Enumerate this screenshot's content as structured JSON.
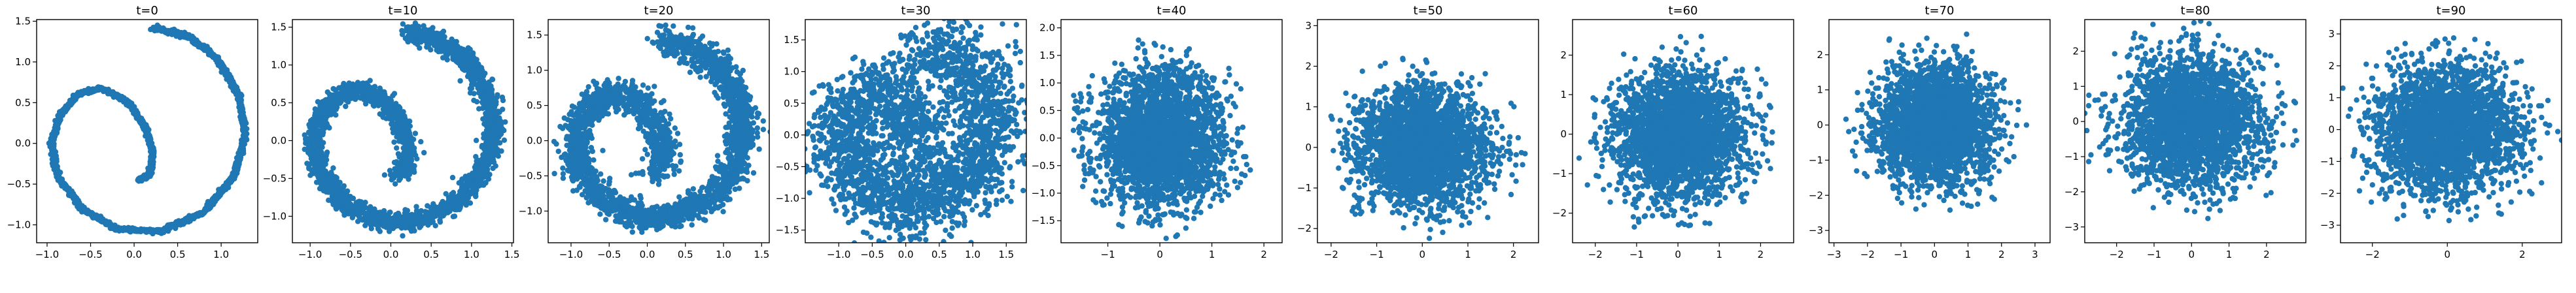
{
  "chart_data": [
    {
      "type": "scatter",
      "title": "t=0",
      "shape": "spiral",
      "noise": 0.012,
      "n": 2600,
      "color": "#1f77b4",
      "xlim": [
        -1.12,
        1.42
      ],
      "ylim": [
        -1.22,
        1.52
      ],
      "xticks": [
        "-1.0",
        "-0.5",
        "0.0",
        "0.5",
        "1.0"
      ],
      "xtick_values": [
        -1.0,
        -0.5,
        0.0,
        0.5,
        1.0
      ],
      "yticks": [
        "-1.0",
        "-0.5",
        "0.0",
        "0.5",
        "1.0",
        "1.5"
      ],
      "ytick_values": [
        -1.0,
        -0.5,
        0.0,
        0.5,
        1.0,
        1.5
      ]
    },
    {
      "type": "scatter",
      "title": "t=10",
      "shape": "spiral",
      "noise": 0.06,
      "n": 2600,
      "color": "#1f77b4",
      "xlim": [
        -1.22,
        1.52
      ],
      "ylim": [
        -1.35,
        1.6
      ],
      "xticks": [
        "-1.0",
        "-0.5",
        "0.0",
        "0.5",
        "1.0",
        "1.5"
      ],
      "xtick_values": [
        -1.0,
        -0.5,
        0.0,
        0.5,
        1.0,
        1.5
      ],
      "yticks": [
        "-1.0",
        "-0.5",
        "0.0",
        "0.5",
        "1.0",
        "1.5"
      ],
      "ytick_values": [
        -1.0,
        -0.5,
        0.0,
        0.5,
        1.0,
        1.5
      ]
    },
    {
      "type": "scatter",
      "title": "t=20",
      "shape": "spiral",
      "noise": 0.1,
      "n": 2600,
      "color": "#1f77b4",
      "xlim": [
        -1.3,
        1.6
      ],
      "ylim": [
        -1.45,
        1.72
      ],
      "xticks": [
        "-1.0",
        "-0.5",
        "0.0",
        "0.5",
        "1.0",
        "1.5"
      ],
      "xtick_values": [
        -1.0,
        -0.5,
        0.0,
        0.5,
        1.0,
        1.5
      ],
      "yticks": [
        "-1.0",
        "-0.5",
        "0.0",
        "0.5",
        "1.0",
        "1.5"
      ],
      "ytick_values": [
        -1.0,
        -0.5,
        0.0,
        0.5,
        1.0,
        1.5
      ]
    },
    {
      "type": "scatter",
      "title": "t=30",
      "shape": "spiral",
      "noise": 0.28,
      "n": 2600,
      "color": "#1f77b4",
      "xlim": [
        -1.5,
        1.8
      ],
      "ylim": [
        -1.7,
        1.82
      ],
      "xticks": [
        "-1.0",
        "-0.5",
        "0.0",
        "0.5",
        "1.0",
        "1.5"
      ],
      "xtick_values": [
        -1.0,
        -0.5,
        0.0,
        0.5,
        1.0,
        1.5
      ],
      "yticks": [
        "-1.5",
        "-1.0",
        "-0.5",
        "0.0",
        "0.5",
        "1.0",
        "1.5"
      ],
      "ytick_values": [
        -1.5,
        -1.0,
        -0.5,
        0.0,
        0.5,
        1.0,
        1.5
      ]
    },
    {
      "type": "scatter",
      "title": "t=40",
      "shape": "blob",
      "sigma": 0.62,
      "rmax": 1.85,
      "n": 2600,
      "color": "#1f77b4",
      "xlim": [
        -1.9,
        2.35
      ],
      "ylim": [
        -1.9,
        2.15
      ],
      "xticks": [
        "-1",
        "0",
        "1",
        "2"
      ],
      "xtick_values": [
        -1,
        0,
        1,
        2
      ],
      "yticks": [
        "-1.5",
        "-1.0",
        "-0.5",
        "0.0",
        "0.5",
        "1.0",
        "1.5",
        "2.0"
      ],
      "ytick_values": [
        -1.5,
        -1.0,
        -0.5,
        0.0,
        0.5,
        1.0,
        1.5,
        2.0
      ]
    },
    {
      "type": "scatter",
      "title": "t=50",
      "shape": "blob",
      "sigma": 0.72,
      "rmax": 2.3,
      "n": 2600,
      "color": "#1f77b4",
      "xlim": [
        -2.3,
        2.55
      ],
      "ylim": [
        -2.35,
        3.15
      ],
      "xticks": [
        "-2",
        "-1",
        "0",
        "1",
        "2"
      ],
      "xtick_values": [
        -2,
        -1,
        0,
        1,
        2
      ],
      "yticks": [
        "-2",
        "-1",
        "0",
        "1",
        "2",
        "3"
      ],
      "ytick_values": [
        -2,
        -1,
        0,
        1,
        2,
        3
      ]
    },
    {
      "type": "scatter",
      "title": "t=60",
      "shape": "blob",
      "sigma": 0.8,
      "rmax": 2.6,
      "n": 2600,
      "color": "#1f77b4",
      "xlim": [
        -2.55,
        2.8
      ],
      "ylim": [
        -2.75,
        2.9
      ],
      "xticks": [
        "-2",
        "-1",
        "0",
        "1",
        "2"
      ],
      "xtick_values": [
        -2,
        -1,
        0,
        1,
        2
      ],
      "yticks": [
        "-2",
        "-1",
        "0",
        "1",
        "2"
      ],
      "ytick_values": [
        -2,
        -1,
        0,
        1,
        2
      ]
    },
    {
      "type": "scatter",
      "title": "t=70",
      "shape": "blob",
      "sigma": 0.85,
      "rmax": 2.8,
      "n": 2600,
      "color": "#1f77b4",
      "xlim": [
        -3.15,
        3.45
      ],
      "ylim": [
        -3.35,
        3.0
      ],
      "xticks": [
        "-3",
        "-2",
        "-1",
        "0",
        "1",
        "2",
        "3"
      ],
      "xtick_values": [
        -3,
        -2,
        -1,
        0,
        1,
        2,
        3
      ],
      "yticks": [
        "-3",
        "-2",
        "-1",
        "0",
        "1",
        "2"
      ],
      "ytick_values": [
        -3,
        -2,
        -1,
        0,
        1,
        2
      ]
    },
    {
      "type": "scatter",
      "title": "t=80",
      "shape": "blob",
      "sigma": 0.92,
      "rmax": 3.0,
      "n": 2600,
      "color": "#1f77b4",
      "xlim": [
        -2.85,
        3.05
      ],
      "ylim": [
        -3.45,
        2.9
      ],
      "xticks": [
        "-2",
        "-1",
        "0",
        "1",
        "2"
      ],
      "xtick_values": [
        -2,
        -1,
        0,
        1,
        2
      ],
      "yticks": [
        "-3",
        "-2",
        "-1",
        "0",
        "1",
        "2"
      ],
      "ytick_values": [
        -3,
        -2,
        -1,
        0,
        1,
        2
      ]
    },
    {
      "type": "scatter",
      "title": "t=90",
      "shape": "blob",
      "sigma": 0.98,
      "rmax": 3.15,
      "n": 2600,
      "color": "#1f77b4",
      "xlim": [
        -2.85,
        3.05
      ],
      "ylim": [
        -3.55,
        3.45
      ],
      "xticks": [
        "-2",
        "0",
        "2"
      ],
      "xtick_values": [
        -2,
        0,
        2
      ],
      "yticks": [
        "-3",
        "-2",
        "-1",
        "0",
        "1",
        "2",
        "3"
      ],
      "ytick_values": [
        -3,
        -2,
        -1,
        0,
        1,
        2,
        3
      ]
    }
  ]
}
